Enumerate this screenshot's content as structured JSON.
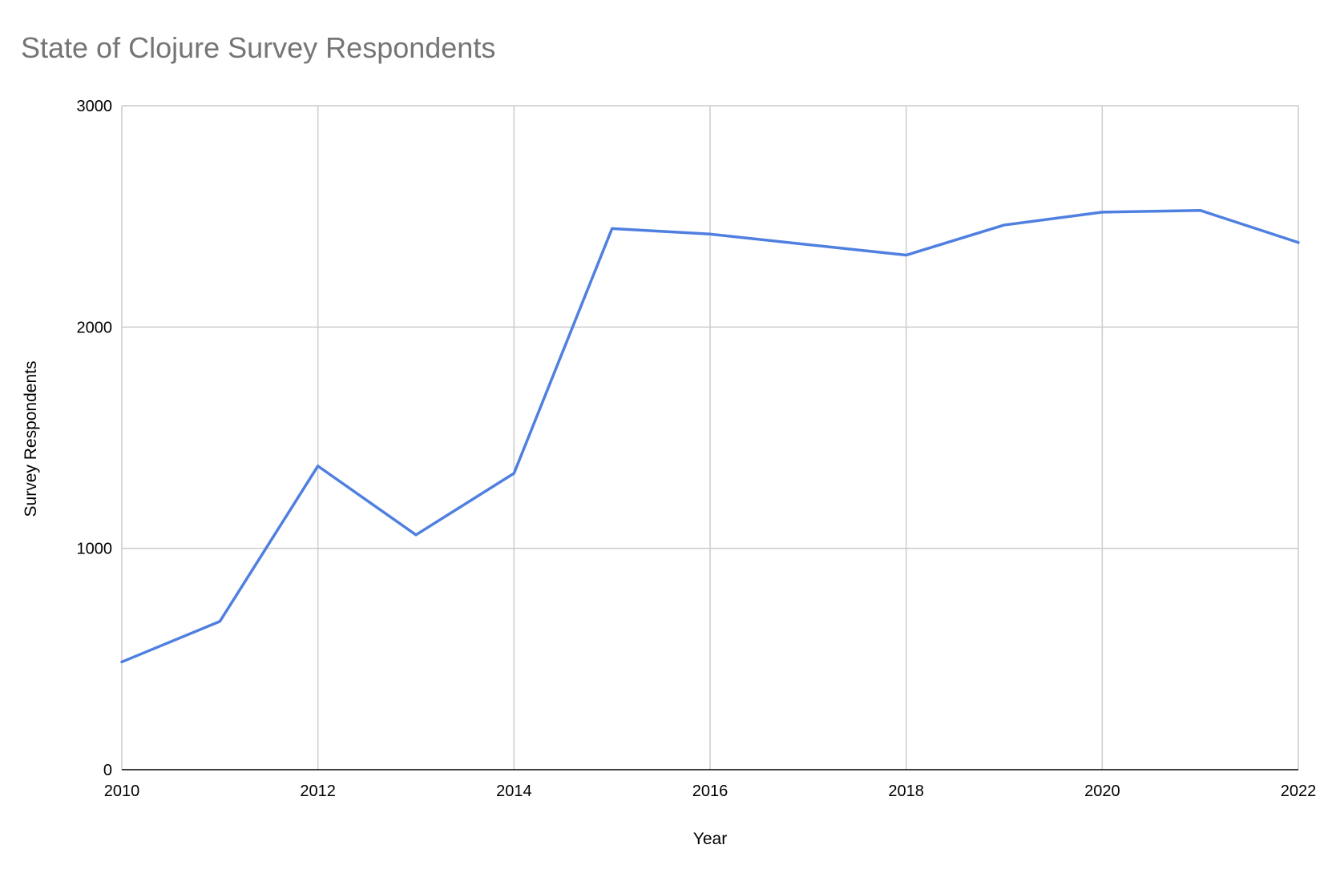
{
  "chart_data": {
    "type": "line",
    "title": "State of Clojure Survey Respondents",
    "xlabel": "Year",
    "ylabel": "Survey Respondents",
    "xlim": [
      2010,
      2022
    ],
    "ylim": [
      0,
      3000
    ],
    "x_ticks": [
      2010,
      2012,
      2014,
      2016,
      2018,
      2020,
      2022
    ],
    "y_ticks": [
      0,
      1000,
      2000,
      3000
    ],
    "grid": true,
    "legend": "none",
    "series": [
      {
        "color": "#4f7fe0",
        "points": [
          {
            "x": 2010,
            "y": 487
          },
          {
            "x": 2011,
            "y": 670
          },
          {
            "x": 2012,
            "y": 1372
          },
          {
            "x": 2013,
            "y": 1061
          },
          {
            "x": 2014,
            "y": 1339
          },
          {
            "x": 2015,
            "y": 2445
          },
          {
            "x": 2016,
            "y": 2420
          },
          {
            "x": 2018,
            "y": 2325
          },
          {
            "x": 2019,
            "y": 2461
          },
          {
            "x": 2020,
            "y": 2519
          },
          {
            "x": 2021,
            "y": 2527
          },
          {
            "x": 2022,
            "y": 2382
          }
        ]
      }
    ]
  }
}
